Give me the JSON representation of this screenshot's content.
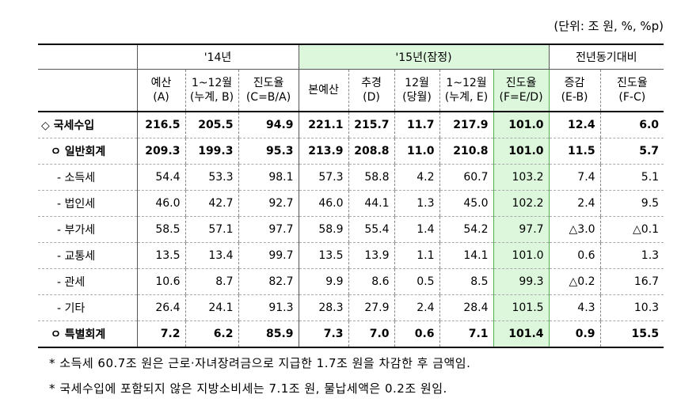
{
  "unit_note": "(단위: 조 원, %, %p)",
  "header": {
    "group_14": "'14년",
    "group_15": "'15년(잠정)",
    "group_prev": "전년동기대비",
    "cols": [
      {
        "l1": "예산",
        "l2": "(A)"
      },
      {
        "l1": "1~12월",
        "l2": "(누계, B)"
      },
      {
        "l1": "진도율",
        "l2": "(C=B/A)"
      },
      {
        "l1": "본예산",
        "l2": ""
      },
      {
        "l1": "추경",
        "l2": "(D)"
      },
      {
        "l1": "12월",
        "l2": "(당월)"
      },
      {
        "l1": "1~12월",
        "l2": "(누계, E)"
      },
      {
        "l1": "진도율",
        "l2": "(F=E/D)"
      },
      {
        "l1": "증감",
        "l2": "(E-B)"
      },
      {
        "l1": "진도율",
        "l2": "(F-C)"
      }
    ]
  },
  "rows": [
    {
      "label": "◇ 국세수입",
      "values": [
        "216.5",
        "205.5",
        "94.9",
        "221.1",
        "215.7",
        "11.7",
        "217.9",
        "101.0",
        "12.4",
        "6.0"
      ]
    },
    {
      "label": "ㅇ 일반회계",
      "values": [
        "209.3",
        "199.3",
        "95.3",
        "213.9",
        "208.8",
        "11.0",
        "210.8",
        "101.0",
        "11.5",
        "5.7"
      ]
    },
    {
      "label": "- 소득세",
      "values": [
        "54.4",
        "53.3",
        "98.1",
        "57.3",
        "58.8",
        "4.2",
        "60.7",
        "103.2",
        "7.4",
        "5.1"
      ]
    },
    {
      "label": "- 법인세",
      "values": [
        "46.0",
        "42.7",
        "92.7",
        "46.0",
        "44.1",
        "1.3",
        "45.0",
        "102.2",
        "2.4",
        "9.5"
      ]
    },
    {
      "label": "- 부가세",
      "values": [
        "58.5",
        "57.1",
        "97.7",
        "58.9",
        "55.4",
        "1.4",
        "54.2",
        "97.7",
        "△3.0",
        "△0.1"
      ]
    },
    {
      "label": "- 교통세",
      "values": [
        "13.5",
        "13.4",
        "99.7",
        "13.5",
        "13.9",
        "1.1",
        "14.1",
        "101.0",
        "0.6",
        "1.3"
      ]
    },
    {
      "label": "- 관세",
      "values": [
        "10.6",
        "8.7",
        "82.7",
        "9.9",
        "8.6",
        "0.5",
        "8.5",
        "99.3",
        "△0.2",
        "16.7"
      ]
    },
    {
      "label": "- 기타",
      "values": [
        "26.4",
        "24.1",
        "91.3",
        "28.3",
        "27.9",
        "2.4",
        "28.4",
        "101.5",
        "4.3",
        "10.3"
      ]
    },
    {
      "label": "ㅇ 특별회계",
      "values": [
        "7.2",
        "6.2",
        "85.9",
        "7.3",
        "7.0",
        "0.6",
        "7.1",
        "101.4",
        "0.9",
        "15.5"
      ]
    }
  ],
  "notes": [
    "* 소득세 60.7조 원은 근로·자녀장려금으로 지급한 1.7조 원을 차감한 후 금액임.",
    "* 국세수입에 포함되지 않은 지방소비세는 7.1조 원, 물납세액은 0.2조 원임."
  ]
}
